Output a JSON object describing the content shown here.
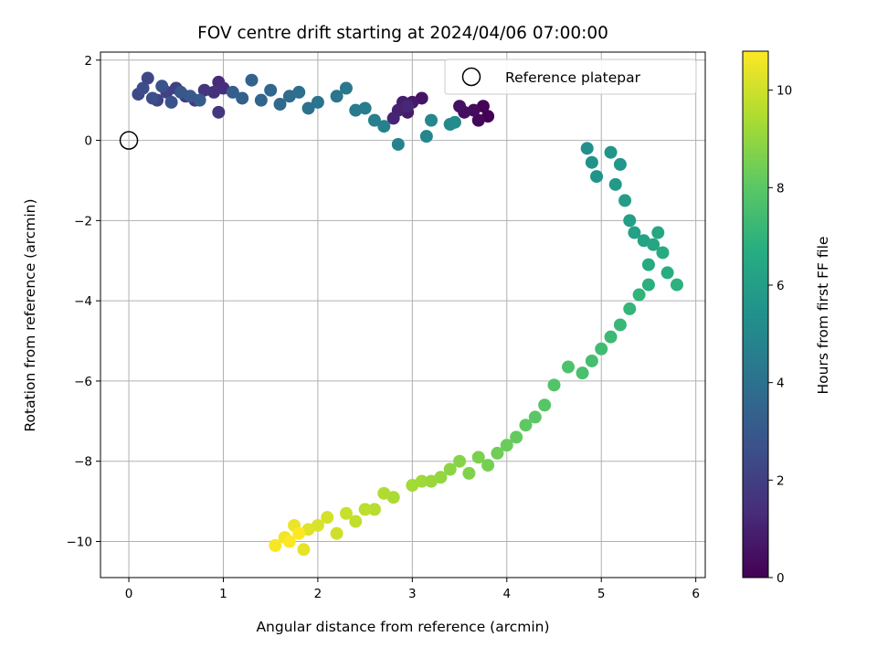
{
  "chart_data": {
    "type": "scatter",
    "title": "FOV centre drift starting at 2024/04/06 07:00:00",
    "xlabel": "Angular distance from reference (arcmin)",
    "ylabel": "Rotation from reference (arcmin)",
    "xlim": [
      -0.3,
      6.1
    ],
    "ylim": [
      -10.9,
      2.2
    ],
    "xticks": [
      "0",
      "1",
      "2",
      "3",
      "4",
      "5",
      "6"
    ],
    "yticks": [
      "−10",
      "−8",
      "−6",
      "−4",
      "−2",
      "0",
      "2"
    ],
    "grid": true,
    "legend": {
      "placement": "top-right",
      "entries": [
        "Reference platepar"
      ]
    },
    "reference_point": {
      "x": 0,
      "y": 0,
      "marker": "open-circle"
    },
    "colorbar": {
      "label": "Hours from first FF file",
      "colormap": "viridis",
      "range": [
        0,
        10.8
      ],
      "ticks": [
        "0",
        "2",
        "4",
        "6",
        "8",
        "10"
      ]
    },
    "points": [
      {
        "x": 3.8,
        "y": 0.6,
        "h": 0.0
      },
      {
        "x": 3.75,
        "y": 0.85,
        "h": 0.1
      },
      {
        "x": 3.7,
        "y": 0.5,
        "h": 0.2
      },
      {
        "x": 3.65,
        "y": 0.75,
        "h": 0.3
      },
      {
        "x": 3.55,
        "y": 0.7,
        "h": 0.4
      },
      {
        "x": 3.5,
        "y": 0.85,
        "h": 0.5
      },
      {
        "x": 3.1,
        "y": 1.05,
        "h": 0.6
      },
      {
        "x": 3.0,
        "y": 0.95,
        "h": 0.7
      },
      {
        "x": 2.95,
        "y": 0.7,
        "h": 0.8
      },
      {
        "x": 2.9,
        "y": 0.95,
        "h": 0.9
      },
      {
        "x": 2.85,
        "y": 0.75,
        "h": 1.0
      },
      {
        "x": 2.8,
        "y": 0.55,
        "h": 1.1
      },
      {
        "x": 2.95,
        "y": 0.85,
        "h": 1.2
      },
      {
        "x": 0.95,
        "y": 1.45,
        "h": 1.3
      },
      {
        "x": 1.0,
        "y": 1.3,
        "h": 1.4
      },
      {
        "x": 0.9,
        "y": 1.2,
        "h": 1.5
      },
      {
        "x": 0.8,
        "y": 1.25,
        "h": 1.6
      },
      {
        "x": 0.95,
        "y": 0.7,
        "h": 1.7
      },
      {
        "x": 0.7,
        "y": 1.0,
        "h": 1.8
      },
      {
        "x": 0.6,
        "y": 1.1,
        "h": 1.9
      },
      {
        "x": 0.5,
        "y": 1.3,
        "h": 2.0
      },
      {
        "x": 0.4,
        "y": 1.2,
        "h": 2.1
      },
      {
        "x": 0.3,
        "y": 1.0,
        "h": 2.2
      },
      {
        "x": 0.2,
        "y": 1.55,
        "h": 2.3
      },
      {
        "x": 0.1,
        "y": 1.15,
        "h": 2.4
      },
      {
        "x": 0.15,
        "y": 1.3,
        "h": 2.5
      },
      {
        "x": 0.25,
        "y": 1.05,
        "h": 2.6
      },
      {
        "x": 0.35,
        "y": 1.35,
        "h": 2.7
      },
      {
        "x": 0.45,
        "y": 0.95,
        "h": 2.8
      },
      {
        "x": 0.55,
        "y": 1.2,
        "h": 2.9
      },
      {
        "x": 0.65,
        "y": 1.1,
        "h": 3.0
      },
      {
        "x": 0.75,
        "y": 1.0,
        "h": 3.1
      },
      {
        "x": 1.1,
        "y": 1.2,
        "h": 3.2
      },
      {
        "x": 1.2,
        "y": 1.05,
        "h": 3.3
      },
      {
        "x": 1.3,
        "y": 1.5,
        "h": 3.4
      },
      {
        "x": 1.4,
        "y": 1.0,
        "h": 3.5
      },
      {
        "x": 1.5,
        "y": 1.25,
        "h": 3.6
      },
      {
        "x": 1.6,
        "y": 0.9,
        "h": 3.7
      },
      {
        "x": 1.7,
        "y": 1.1,
        "h": 3.8
      },
      {
        "x": 1.8,
        "y": 1.2,
        "h": 3.9
      },
      {
        "x": 1.9,
        "y": 0.8,
        "h": 4.0
      },
      {
        "x": 2.0,
        "y": 0.95,
        "h": 4.1
      },
      {
        "x": 2.2,
        "y": 1.1,
        "h": 4.2
      },
      {
        "x": 2.3,
        "y": 1.3,
        "h": 4.3
      },
      {
        "x": 2.4,
        "y": 0.75,
        "h": 4.4
      },
      {
        "x": 2.5,
        "y": 0.8,
        "h": 4.5
      },
      {
        "x": 2.6,
        "y": 0.5,
        "h": 4.6
      },
      {
        "x": 2.7,
        "y": 0.35,
        "h": 4.7
      },
      {
        "x": 2.85,
        "y": -0.1,
        "h": 4.8
      },
      {
        "x": 3.15,
        "y": 0.1,
        "h": 4.9
      },
      {
        "x": 3.2,
        "y": 0.5,
        "h": 5.0
      },
      {
        "x": 3.4,
        "y": 0.4,
        "h": 5.1
      },
      {
        "x": 3.45,
        "y": 0.45,
        "h": 5.2
      },
      {
        "x": 4.85,
        "y": -0.2,
        "h": 5.3
      },
      {
        "x": 4.9,
        "y": -0.55,
        "h": 5.4
      },
      {
        "x": 4.95,
        "y": -0.9,
        "h": 5.5
      },
      {
        "x": 5.1,
        "y": -0.3,
        "h": 5.6
      },
      {
        "x": 5.2,
        "y": -0.6,
        "h": 5.7
      },
      {
        "x": 5.15,
        "y": -1.1,
        "h": 5.8
      },
      {
        "x": 5.25,
        "y": -1.5,
        "h": 5.9
      },
      {
        "x": 5.3,
        "y": -2.0,
        "h": 6.0
      },
      {
        "x": 5.35,
        "y": -2.3,
        "h": 6.1
      },
      {
        "x": 5.45,
        "y": -2.5,
        "h": 6.2
      },
      {
        "x": 5.55,
        "y": -2.6,
        "h": 6.3
      },
      {
        "x": 5.6,
        "y": -2.3,
        "h": 6.4
      },
      {
        "x": 5.5,
        "y": -3.1,
        "h": 6.5
      },
      {
        "x": 5.65,
        "y": -2.8,
        "h": 6.6
      },
      {
        "x": 5.7,
        "y": -3.3,
        "h": 6.7
      },
      {
        "x": 5.5,
        "y": -3.6,
        "h": 6.8
      },
      {
        "x": 5.8,
        "y": -3.6,
        "h": 6.9
      },
      {
        "x": 5.4,
        "y": -3.85,
        "h": 7.0
      },
      {
        "x": 5.3,
        "y": -4.2,
        "h": 7.1
      },
      {
        "x": 5.2,
        "y": -4.6,
        "h": 7.2
      },
      {
        "x": 5.1,
        "y": -4.9,
        "h": 7.3
      },
      {
        "x": 5.0,
        "y": -5.2,
        "h": 7.4
      },
      {
        "x": 4.9,
        "y": -5.5,
        "h": 7.5
      },
      {
        "x": 4.8,
        "y": -5.8,
        "h": 7.6
      },
      {
        "x": 4.65,
        "y": -5.65,
        "h": 7.7
      },
      {
        "x": 4.5,
        "y": -6.1,
        "h": 7.8
      },
      {
        "x": 4.4,
        "y": -6.6,
        "h": 7.9
      },
      {
        "x": 4.3,
        "y": -6.9,
        "h": 8.0
      },
      {
        "x": 4.2,
        "y": -7.1,
        "h": 8.1
      },
      {
        "x": 4.1,
        "y": -7.4,
        "h": 8.2
      },
      {
        "x": 4.0,
        "y": -7.6,
        "h": 8.3
      },
      {
        "x": 3.9,
        "y": -7.8,
        "h": 8.4
      },
      {
        "x": 3.8,
        "y": -8.1,
        "h": 8.5
      },
      {
        "x": 3.7,
        "y": -7.9,
        "h": 8.6
      },
      {
        "x": 3.6,
        "y": -8.3,
        "h": 8.7
      },
      {
        "x": 3.5,
        "y": -8.0,
        "h": 8.8
      },
      {
        "x": 3.4,
        "y": -8.2,
        "h": 8.9
      },
      {
        "x": 3.3,
        "y": -8.4,
        "h": 9.0
      },
      {
        "x": 3.2,
        "y": -8.5,
        "h": 9.1
      },
      {
        "x": 3.1,
        "y": -8.5,
        "h": 9.2
      },
      {
        "x": 3.0,
        "y": -8.6,
        "h": 9.3
      },
      {
        "x": 2.8,
        "y": -8.9,
        "h": 9.4
      },
      {
        "x": 2.7,
        "y": -8.8,
        "h": 9.5
      },
      {
        "x": 2.6,
        "y": -9.2,
        "h": 9.6
      },
      {
        "x": 2.5,
        "y": -9.2,
        "h": 9.7
      },
      {
        "x": 2.4,
        "y": -9.5,
        "h": 9.8
      },
      {
        "x": 2.3,
        "y": -9.3,
        "h": 9.9
      },
      {
        "x": 2.2,
        "y": -9.8,
        "h": 10.0
      },
      {
        "x": 2.1,
        "y": -9.4,
        "h": 10.1
      },
      {
        "x": 2.0,
        "y": -9.6,
        "h": 10.2
      },
      {
        "x": 1.9,
        "y": -9.7,
        "h": 10.3
      },
      {
        "x": 1.85,
        "y": -10.2,
        "h": 10.4
      },
      {
        "x": 1.75,
        "y": -9.6,
        "h": 10.5
      },
      {
        "x": 1.65,
        "y": -9.9,
        "h": 10.6
      },
      {
        "x": 1.55,
        "y": -10.1,
        "h": 10.7
      },
      {
        "x": 1.7,
        "y": -10.0,
        "h": 10.8
      },
      {
        "x": 1.8,
        "y": -9.8,
        "h": 10.8
      }
    ]
  }
}
